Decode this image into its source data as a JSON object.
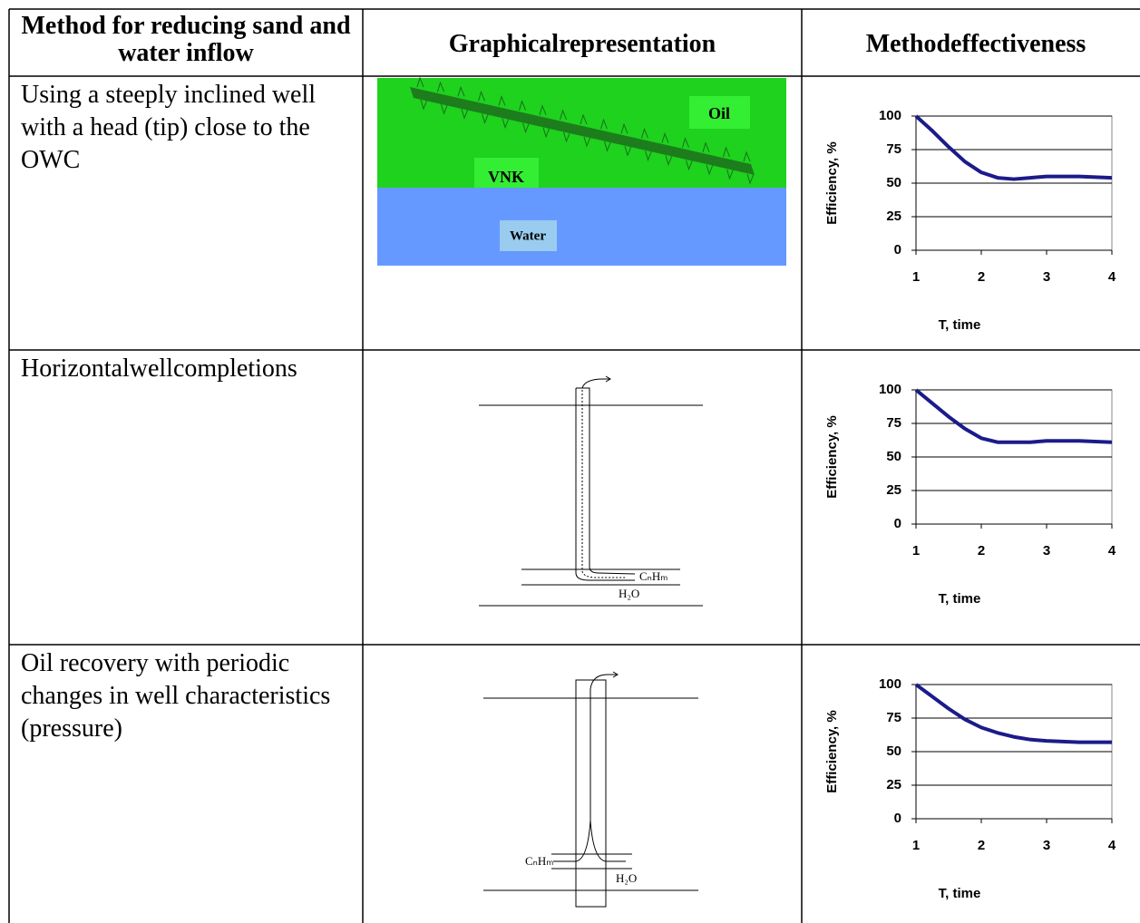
{
  "table": {
    "header": [
      "Method for reducing sand and water inflow",
      "Graphicalrepresentation",
      "Methodeffectiveness"
    ],
    "rows": [
      {
        "method": "Using a steeply inclined well with a head (tip) close to the OWC",
        "diagram": {
          "labels": [
            "Oil",
            "VNK",
            "Water"
          ]
        },
        "chart": {
          "type": "line",
          "y_label": "Efficiency, %",
          "x_label": "T, time",
          "color": "#1b1b8a",
          "x": [
            1,
            1.25,
            1.5,
            1.75,
            2,
            2.25,
            2.5,
            2.75,
            3,
            3.5,
            4
          ],
          "values": [
            100,
            89,
            77,
            66,
            58,
            54,
            53,
            54,
            55,
            55,
            54
          ],
          "xlim": [
            1,
            4
          ],
          "ylim": [
            0,
            100
          ],
          "xticks": [
            1,
            2,
            3,
            4
          ],
          "yticks": [
            0,
            25,
            50,
            75,
            100
          ],
          "grid": true
        }
      },
      {
        "method": "Horizontalwellcompletions",
        "diagram": {
          "labels": [
            "CₙHₘ",
            "H₂O"
          ]
        },
        "chart": {
          "type": "line",
          "y_label": "Efficiency, %",
          "x_label": "T, time",
          "color": "#1b1b8a",
          "x": [
            1,
            1.25,
            1.5,
            1.75,
            2,
            2.25,
            2.5,
            2.75,
            3,
            3.5,
            4
          ],
          "values": [
            100,
            90,
            80,
            71,
            64,
            61,
            61,
            61,
            62,
            62,
            61
          ],
          "xlim": [
            1,
            4
          ],
          "ylim": [
            0,
            100
          ],
          "xticks": [
            1,
            2,
            3,
            4
          ],
          "yticks": [
            0,
            25,
            50,
            75,
            100
          ],
          "grid": true
        }
      },
      {
        "method": "Oil recovery with periodic changes in well characteristics (pressure)",
        "diagram": {
          "labels": [
            "CₙHₘ",
            "H₂O"
          ]
        },
        "chart": {
          "type": "line",
          "y_label": "Efficiency, %",
          "x_label": "T, time",
          "color": "#1b1b8a",
          "x": [
            1,
            1.25,
            1.5,
            1.75,
            2,
            2.25,
            2.5,
            2.75,
            3,
            3.5,
            4
          ],
          "values": [
            100,
            91,
            82,
            74,
            68,
            64,
            61,
            59,
            58,
            57,
            57
          ],
          "xlim": [
            1,
            4
          ],
          "ylim": [
            0,
            100
          ],
          "xticks": [
            1,
            2,
            3,
            4
          ],
          "yticks": [
            0,
            25,
            50,
            75,
            100
          ],
          "grid": true
        }
      }
    ]
  }
}
